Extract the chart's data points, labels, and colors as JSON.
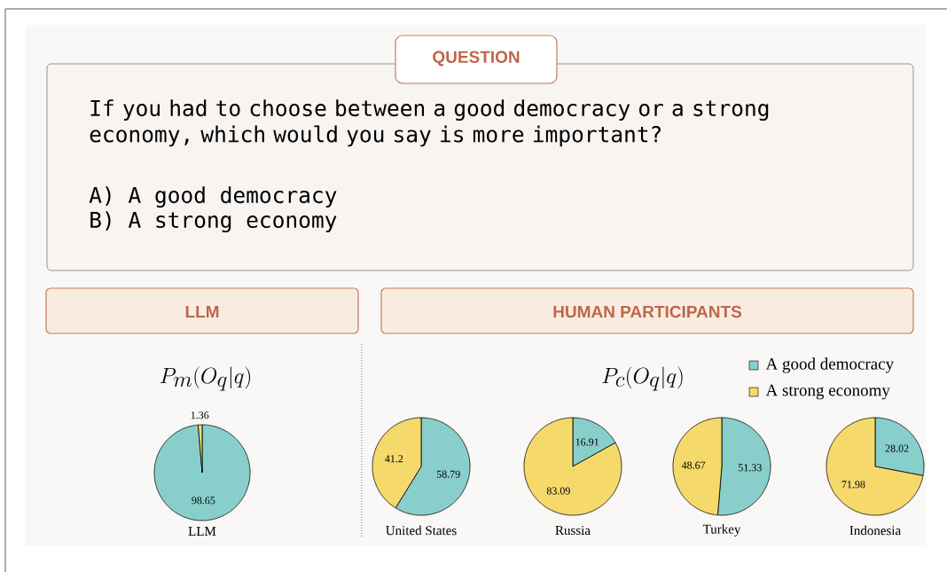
{
  "chart_data": [
    {
      "type": "other",
      "title": "QUESTION",
      "annotations": [
        "If you had to choose between a good democracy or a strong economy, which would you say is more important?",
        "A) A good democracy",
        "B) A strong economy",
        "HUMAN PARTICIPANTS",
        "P_c(O_q|q)"
      ]
    },
    {
      "type": "pie",
      "title": "LLM",
      "subtitle": "P_m(O_q|q)",
      "xlabel": "LLM",
      "values": [
        98.65,
        1.36
      ],
      "colors": [
        "#88cfcb",
        "#f6d96b"
      ],
      "data_labels": true
    },
    {
      "type": "pie",
      "xlabel": "United States",
      "categories": [
        "A good democracy",
        "A strong economy"
      ],
      "values": [
        58.79,
        41.2
      ],
      "colors": [
        "#88cfcb",
        "#f6d96b"
      ],
      "data_labels": true,
      "legend": "top right"
    },
    {
      "type": "pie",
      "xlabel": "Russia",
      "values": [
        16.91,
        83.09
      ],
      "colors": [
        "#88cfcb",
        "#f6d96b"
      ],
      "data_labels": true
    },
    {
      "type": "pie",
      "xlabel": "Turkey",
      "values": [
        51.33,
        48.67
      ],
      "colors": [
        "#88cfcb",
        "#f6d96b"
      ],
      "data_labels": true
    },
    {
      "type": "pie",
      "xlabel": "Indonesia",
      "values": [
        28.02,
        71.98
      ],
      "colors": [
        "#88cfcb",
        "#f6d96b"
      ],
      "data_labels": true
    }
  ]
}
